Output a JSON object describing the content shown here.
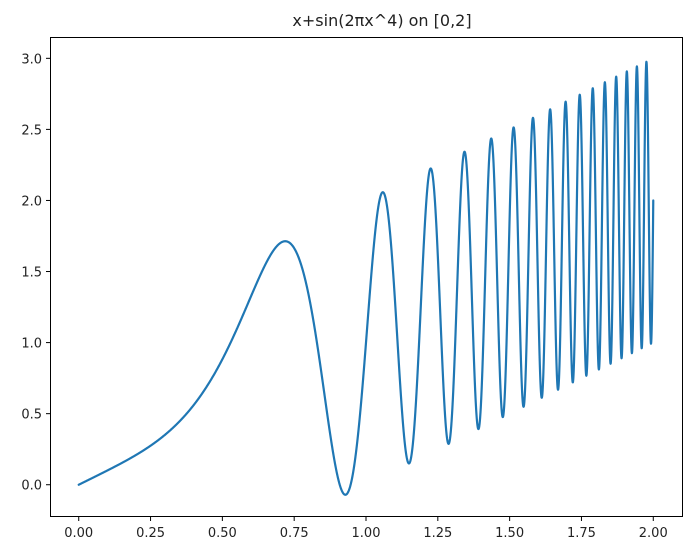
{
  "chart_data": {
    "type": "line",
    "title": "x+sin(2πx^4) on [0,2]",
    "xlabel": "",
    "ylabel": "",
    "xlim": [
      -0.1,
      2.1
    ],
    "ylim": [
      -0.22,
      3.15
    ],
    "grid": false,
    "xticks": [
      0.0,
      0.25,
      0.5,
      0.75,
      1.0,
      1.25,
      1.5,
      1.75,
      2.0
    ],
    "xtick_labels": [
      "0.00",
      "0.25",
      "0.50",
      "0.75",
      "1.00",
      "1.25",
      "1.50",
      "1.75",
      "2.00"
    ],
    "yticks": [
      0.0,
      0.5,
      1.0,
      1.5,
      2.0,
      2.5,
      3.0
    ],
    "ytick_labels": [
      "0.0",
      "0.5",
      "1.0",
      "1.5",
      "2.0",
      "2.5",
      "3.0"
    ],
    "series": [
      {
        "name": "",
        "color": "#1f77b4",
        "function": "x+sin(2πx^4)",
        "x_range": [
          0,
          2
        ],
        "sample_count": 4001
      }
    ]
  }
}
